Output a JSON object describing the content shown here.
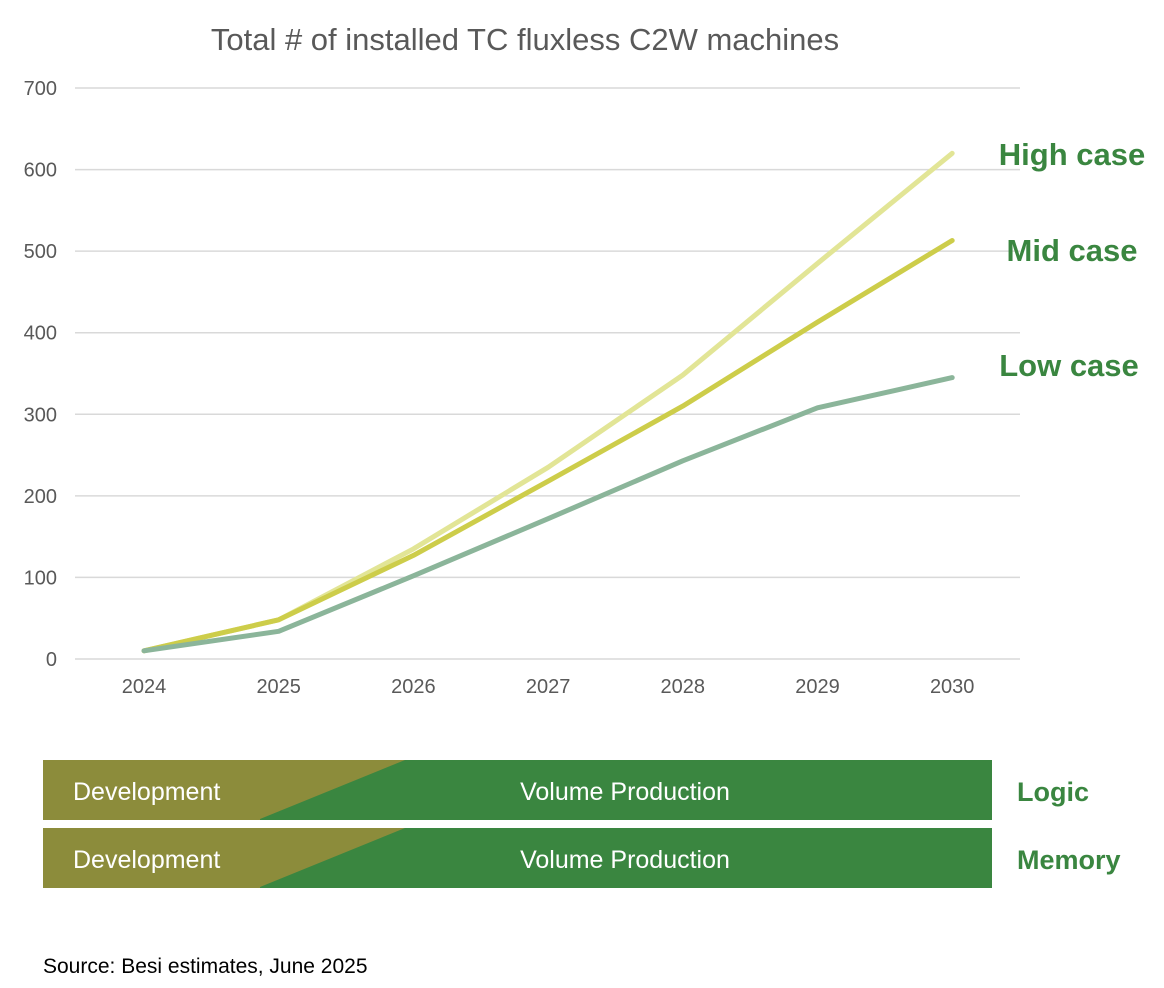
{
  "chart_data": {
    "type": "line",
    "title": "Total # of installed TC fluxless C2W machines",
    "x": [
      "2024",
      "2025",
      "2026",
      "2027",
      "2028",
      "2029",
      "2030"
    ],
    "ylim": [
      0,
      700
    ],
    "yticks": [
      0,
      100,
      200,
      300,
      400,
      500,
      600,
      700
    ],
    "grid": true,
    "series": [
      {
        "name": "High case",
        "color": "#e2e596",
        "values": [
          10,
          48,
          135,
          235,
          348,
          485,
          620
        ]
      },
      {
        "name": "Mid case",
        "color": "#cdcd4a",
        "values": [
          10,
          48,
          127,
          218,
          310,
          413,
          513
        ]
      },
      {
        "name": "Low case",
        "color": "#8bb59a",
        "values": [
          10,
          34,
          102,
          172,
          243,
          308,
          345
        ]
      }
    ],
    "label_color": "#3a8640"
  },
  "phases": {
    "development_color": "#8c8c3b",
    "production_color": "#3a8640",
    "rows": [
      {
        "name": "Logic",
        "development_label": "Development",
        "production_label": "Volume Production"
      },
      {
        "name": "Memory",
        "development_label": "Development",
        "production_label": "Volume Production"
      }
    ]
  },
  "source": "Source: Besi estimates, June 2025"
}
